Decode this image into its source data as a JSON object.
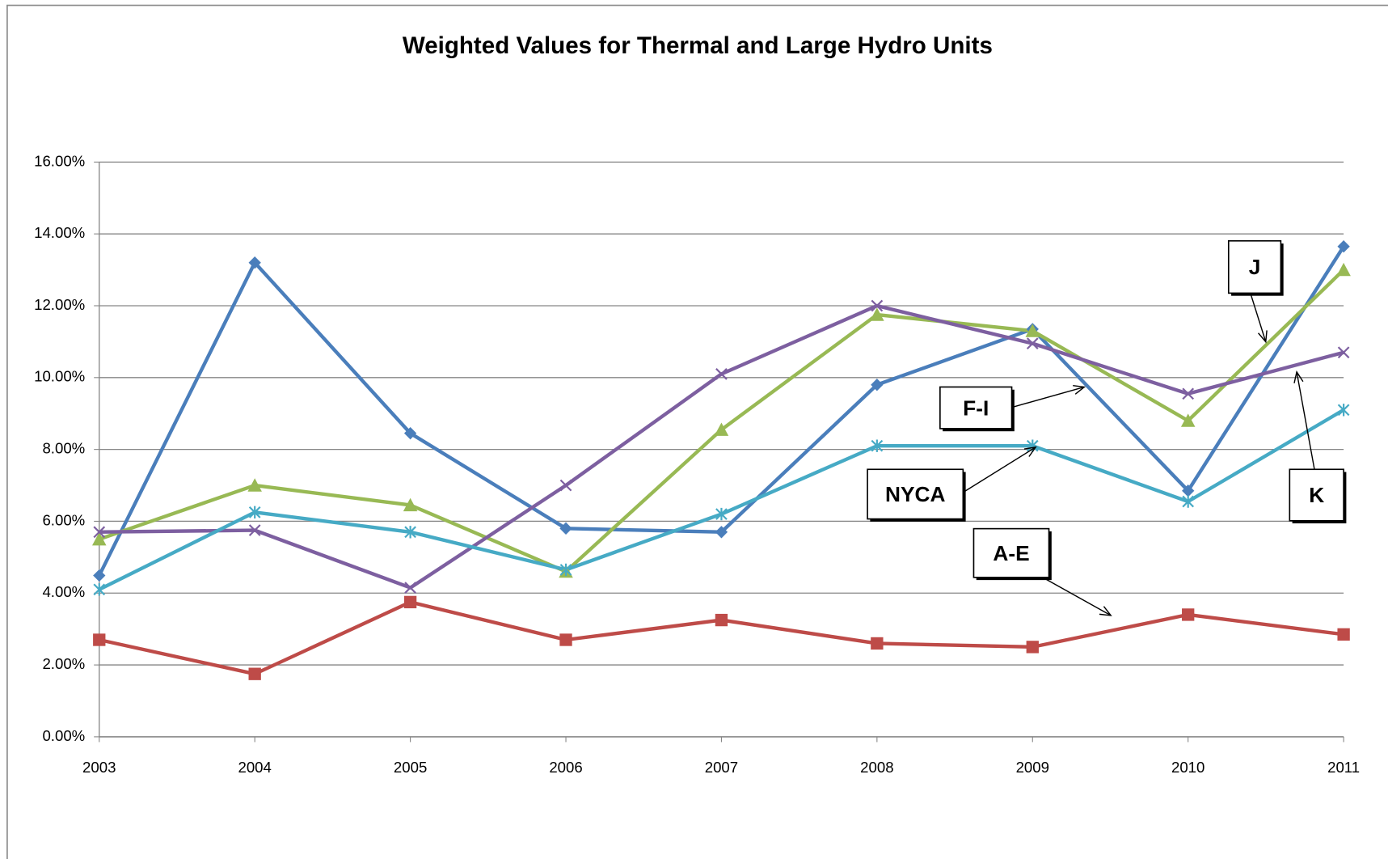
{
  "chart_data": {
    "type": "line",
    "title": "Weighted Values for Thermal and Large Hydro Units",
    "categories": [
      "2003",
      "2004",
      "2005",
      "2006",
      "2007",
      "2008",
      "2009",
      "2010",
      "2011"
    ],
    "ylim": [
      0,
      16
    ],
    "yticks": [
      {
        "value": 0,
        "label": "0.00%"
      },
      {
        "value": 2,
        "label": "2.00%"
      },
      {
        "value": 4,
        "label": "4.00%"
      },
      {
        "value": 6,
        "label": "6.00%"
      },
      {
        "value": 8,
        "label": "8.00%"
      },
      {
        "value": 10,
        "label": "10.00%"
      },
      {
        "value": 12,
        "label": "12.00%"
      },
      {
        "value": 14,
        "label": "14.00%"
      },
      {
        "value": 16,
        "label": "16.00%"
      }
    ],
    "grid": true,
    "series": [
      {
        "name": "F-I",
        "color": "#4a7ebb",
        "marker": "diamond",
        "values": [
          4.49,
          13.2,
          8.45,
          5.8,
          5.7,
          9.8,
          11.35,
          6.85,
          13.65
        ]
      },
      {
        "name": "A-E",
        "color": "#be4b48",
        "marker": "square",
        "values": [
          2.7,
          1.75,
          3.75,
          2.7,
          3.25,
          2.6,
          2.5,
          3.4,
          2.85
        ]
      },
      {
        "name": "J",
        "color": "#98b954",
        "marker": "triangle",
        "values": [
          5.5,
          7.0,
          6.45,
          4.6,
          8.55,
          11.75,
          11.3,
          8.8,
          13.0
        ]
      },
      {
        "name": "K",
        "color": "#7d5fa0",
        "marker": "x",
        "values": [
          5.7,
          5.75,
          4.15,
          7.0,
          10.1,
          12.0,
          10.95,
          9.55,
          10.7
        ]
      },
      {
        "name": "NYCA",
        "color": "#46aac5",
        "marker": "star",
        "values": [
          4.1,
          6.25,
          5.7,
          4.65,
          6.2,
          8.1,
          8.1,
          6.55,
          9.1
        ]
      }
    ]
  }
}
